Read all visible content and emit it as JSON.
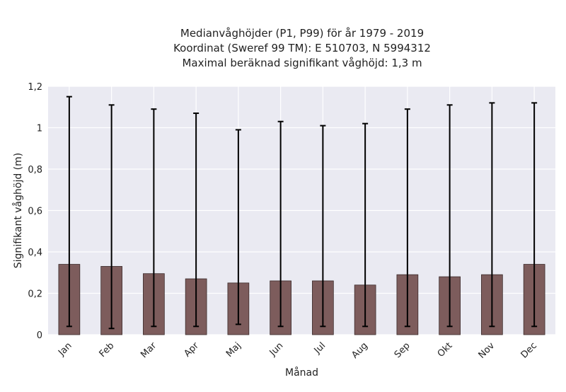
{
  "chart_data": {
    "type": "bar",
    "title_lines": [
      "Medianvåghöjder (P1, P99) för år 1979 - 2019",
      "Koordinat (Sweref 99 TM): E 510703, N 5994312",
      "Maximal beräknad signifikant våghöjd: 1,3 m"
    ],
    "xlabel": "Månad",
    "ylabel": "Signifikant våghöjd (m)",
    "categories": [
      "Jan",
      "Feb",
      "Mar",
      "Apr",
      "Maj",
      "Jun",
      "Jul",
      "Aug",
      "Sep",
      "Okt",
      "Nov",
      "Dec"
    ],
    "values": [
      0.34,
      0.33,
      0.295,
      0.27,
      0.25,
      0.26,
      0.26,
      0.24,
      0.29,
      0.28,
      0.29,
      0.34
    ],
    "p1": [
      0.04,
      0.03,
      0.04,
      0.04,
      0.05,
      0.04,
      0.04,
      0.04,
      0.04,
      0.04,
      0.04,
      0.04
    ],
    "p99": [
      1.15,
      1.11,
      1.09,
      1.07,
      0.99,
      1.03,
      1.01,
      1.02,
      1.09,
      1.11,
      1.12,
      1.12
    ],
    "ylim": [
      0,
      1.2
    ],
    "yticks": [
      0,
      0.2,
      0.4,
      0.6,
      0.8,
      1.0,
      1.2
    ],
    "ytick_labels": [
      "0",
      "0,2",
      "0,4",
      "0,6",
      "0,8",
      "1",
      "1,2"
    ],
    "grid": true,
    "colors": {
      "bar": "#7d5c5c",
      "bar_edge": "#3a2a2a",
      "errorbar": "#000000",
      "plot_bg": "#eaeaf2",
      "grid": "#ffffff"
    }
  }
}
